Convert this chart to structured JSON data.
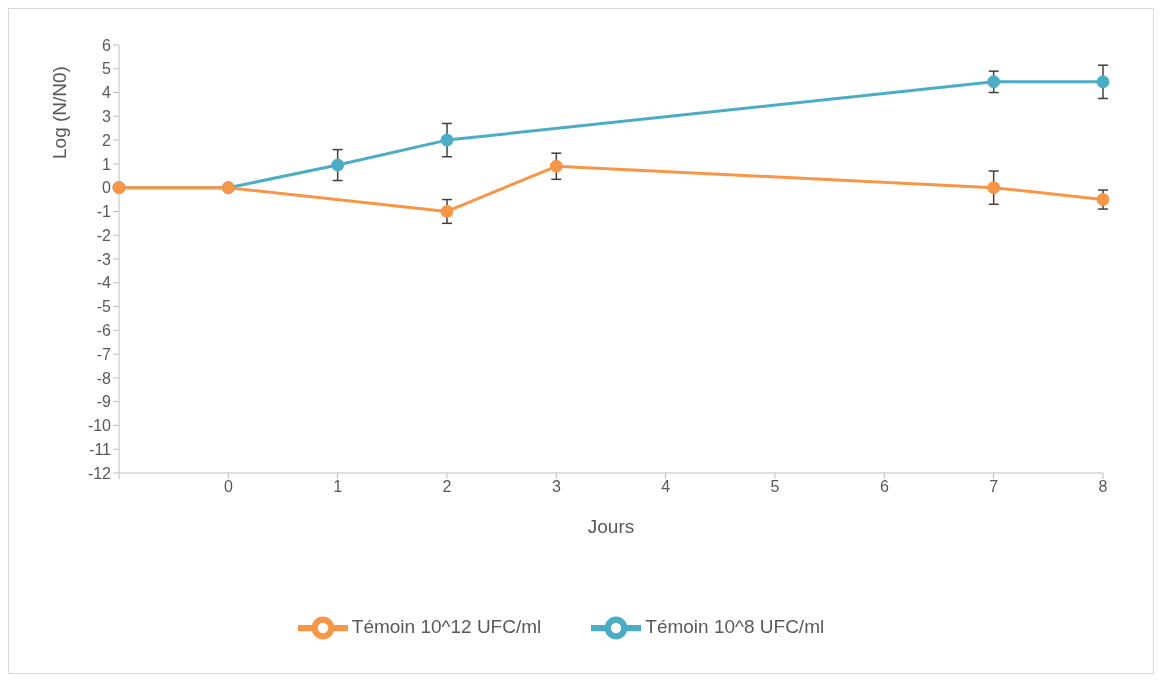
{
  "chart_data": {
    "type": "line",
    "xlabel": "Jours",
    "ylabel": "Log (N/N0)",
    "categories": [
      null,
      "0",
      "1",
      "2",
      "3",
      "4",
      "5",
      "6",
      "7",
      "8"
    ],
    "series": [
      {
        "name": "Témoin 10^8 UFC/ml",
        "color": "#4bacc6",
        "values": [
          0,
          0,
          0.95,
          2,
          null,
          null,
          null,
          null,
          4.45,
          4.45
        ],
        "errors": [
          null,
          null,
          0.65,
          0.7,
          null,
          null,
          null,
          null,
          0.45,
          0.7
        ]
      },
      {
        "name": "Témoin 10^12 UFC/ml",
        "color": "#f79646",
        "values": [
          0,
          0,
          null,
          -1,
          0.9,
          null,
          null,
          null,
          0,
          -0.5
        ],
        "errors": [
          null,
          null,
          null,
          0.5,
          0.55,
          null,
          null,
          null,
          0.7,
          0.4
        ]
      }
    ],
    "ylim": [
      -12,
      6
    ],
    "yticks": [
      -12,
      -11,
      -10,
      -9,
      -8,
      -7,
      -6,
      -5,
      -4,
      -3,
      -2,
      -1,
      0,
      1,
      2,
      3,
      4,
      5,
      6
    ],
    "grid": false,
    "legend": "bottom",
    "marker": "circle",
    "line_style": "solid"
  }
}
